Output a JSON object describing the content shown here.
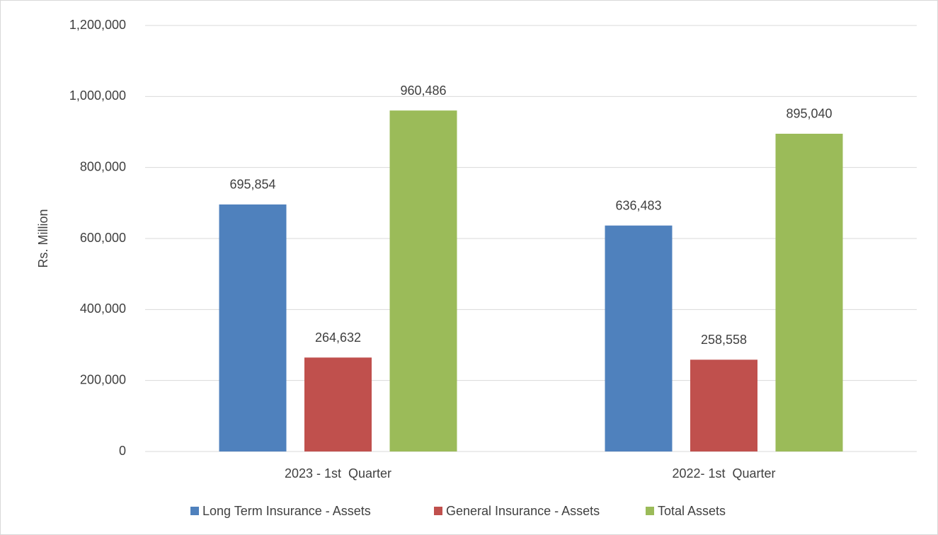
{
  "chart_data": {
    "type": "bar",
    "y_label": "Rs. Million",
    "categories": [
      "2023 - 1st  Quarter",
      "2022- 1st  Quarter"
    ],
    "series": [
      {
        "name": "Long Term Insurance - Assets",
        "color": "#4f81bd",
        "values": [
          695854,
          636483
        ],
        "value_labels": [
          "695,854",
          "636,483"
        ]
      },
      {
        "name": "General Insurance - Assets",
        "color": "#c0504d",
        "values": [
          264632,
          258558
        ],
        "value_labels": [
          "264,632",
          "258,558"
        ]
      },
      {
        "name": "Total Assets",
        "color": "#9bbb59",
        "values": [
          960486,
          895040
        ],
        "value_labels": [
          "960,486",
          "895,040"
        ]
      }
    ],
    "ylim": [
      0,
      1200000
    ],
    "yticks": [
      0,
      {
        "value": 200000,
        "label": "200,000"
      },
      {
        "value": 400000,
        "label": "400,000"
      },
      {
        "value": 600000,
        "label": "600,000"
      },
      {
        "value": 800000,
        "label": "800,000"
      },
      {
        "value": 1000000,
        "label": "1,000,000"
      },
      {
        "value": 1200000,
        "label": "1,200,000"
      }
    ],
    "grid": true,
    "legend": "bottom"
  }
}
